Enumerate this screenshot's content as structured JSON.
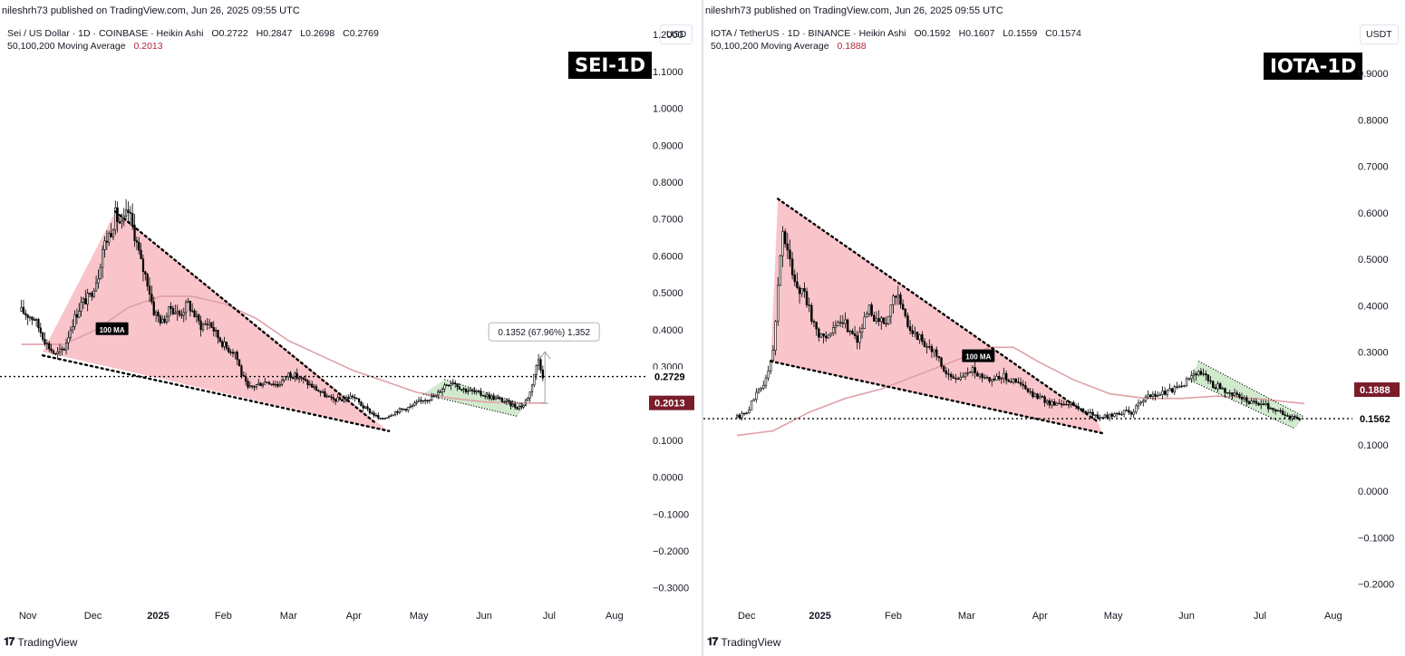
{
  "panels": {
    "sei": {
      "published": "nileshrh73 published on TradingView.com, Jun 26, 2025 09:55 UTC",
      "symbol_line": "Sei / US Dollar · 1D · COINBASE · Heikin Ashi",
      "ohlc": {
        "o": "O0.2722",
        "h": "H0.2847",
        "l": "L0.2698",
        "c": "C0.2769"
      },
      "ma_label": "50,100,200 Moving Average",
      "ma_value": "0.2013",
      "currency": "USD",
      "ticker": "SEI-1D",
      "ma_tag": "100 MA",
      "measure_label": "0.1352 (67.96%) 1,352",
      "brand": "TradingView"
    },
    "iota": {
      "published": "nileshrh73 published on TradingView.com, Jun 26, 2025 09:55 UTC",
      "symbol_line": "IOTA / TetherUS · 1D · BINANCE · Heikin Ashi",
      "ohlc": {
        "o": "O0.1592",
        "h": "H0.1607",
        "l": "L0.1559",
        "c": "C0.1574"
      },
      "ma_label": "50,100,200 Moving Average",
      "ma_value": "0.1888",
      "currency": "USDT",
      "ticker": "IOTA-1D",
      "ma_tag": "100 MA",
      "brand": "TradingView"
    }
  },
  "colors": {
    "candle": "#000000",
    "ma_line": "#e0a0a8",
    "ma_tag_bg": "#8b1a2b",
    "wedge_red": "#f7b2b8",
    "channel_green": "#c9e6c5",
    "axis_text": "#131722"
  },
  "chart_data": [
    {
      "type": "candlestick",
      "title": "SEI-1D",
      "x_ticks": [
        "Nov",
        "Dec",
        "2025",
        "Feb",
        "Mar",
        "Apr",
        "May",
        "Jun",
        "Jul",
        "Aug"
      ],
      "y_ticks": [
        "1.2000",
        "1.1000",
        "1.0000",
        "0.9000",
        "0.8000",
        "0.7000",
        "0.6000",
        "0.5000",
        "0.4000",
        "0.3000",
        "0.1000",
        "0.0000",
        "−0.1000",
        "−0.2000",
        "−0.3000"
      ],
      "ylim": [
        -0.34,
        1.22
      ],
      "xlim_days": [
        -10,
        292
      ],
      "last_price": {
        "label": "0.2729",
        "value": 0.2729
      },
      "ma_price": {
        "label": "0.2013",
        "value": 0.2013
      },
      "price_path": [
        [
          0,
          0.45
        ],
        [
          6,
          0.43
        ],
        [
          12,
          0.36
        ],
        [
          16,
          0.33
        ],
        [
          20,
          0.35
        ],
        [
          24,
          0.42
        ],
        [
          28,
          0.47
        ],
        [
          32,
          0.49
        ],
        [
          36,
          0.55
        ],
        [
          38,
          0.62
        ],
        [
          42,
          0.67
        ],
        [
          44,
          0.71
        ],
        [
          47,
          0.68
        ],
        [
          50,
          0.72
        ],
        [
          53,
          0.66
        ],
        [
          56,
          0.58
        ],
        [
          59,
          0.53
        ],
        [
          62,
          0.45
        ],
        [
          66,
          0.42
        ],
        [
          70,
          0.46
        ],
        [
          74,
          0.44
        ],
        [
          78,
          0.47
        ],
        [
          80,
          0.45
        ],
        [
          84,
          0.41
        ],
        [
          88,
          0.42
        ],
        [
          92,
          0.38
        ],
        [
          96,
          0.35
        ],
        [
          100,
          0.34
        ],
        [
          103,
          0.28
        ],
        [
          106,
          0.24
        ],
        [
          110,
          0.25
        ],
        [
          115,
          0.26
        ],
        [
          120,
          0.25
        ],
        [
          125,
          0.28
        ],
        [
          130,
          0.27
        ],
        [
          135,
          0.25
        ],
        [
          140,
          0.23
        ],
        [
          145,
          0.21
        ],
        [
          150,
          0.21
        ],
        [
          155,
          0.22
        ],
        [
          160,
          0.19
        ],
        [
          165,
          0.17
        ],
        [
          168,
          0.155
        ],
        [
          171,
          0.165
        ],
        [
          176,
          0.18
        ],
        [
          182,
          0.19
        ],
        [
          188,
          0.21
        ],
        [
          194,
          0.22
        ],
        [
          198,
          0.25
        ],
        [
          202,
          0.26
        ],
        [
          206,
          0.24
        ],
        [
          212,
          0.23
        ],
        [
          218,
          0.22
        ],
        [
          224,
          0.21
        ],
        [
          228,
          0.2
        ],
        [
          232,
          0.19
        ],
        [
          235,
          0.195
        ],
        [
          238,
          0.23
        ],
        [
          240,
          0.28
        ],
        [
          242,
          0.32
        ],
        [
          244,
          0.2769
        ]
      ],
      "ma_path": [
        [
          0,
          0.36
        ],
        [
          20,
          0.36
        ],
        [
          35,
          0.4
        ],
        [
          50,
          0.46
        ],
        [
          65,
          0.49
        ],
        [
          80,
          0.49
        ],
        [
          95,
          0.47
        ],
        [
          110,
          0.43
        ],
        [
          125,
          0.37
        ],
        [
          140,
          0.33
        ],
        [
          155,
          0.29
        ],
        [
          170,
          0.26
        ],
        [
          185,
          0.23
        ],
        [
          200,
          0.215
        ],
        [
          215,
          0.205
        ],
        [
          230,
          0.2
        ],
        [
          245,
          0.2013
        ]
      ],
      "wedge_red": [
        [
          10,
          0.34
        ],
        [
          44,
          0.72
        ],
        [
          164,
          0.16
        ],
        [
          172,
          0.125
        ]
      ],
      "wedge_upper": [
        [
          44,
          0.72
        ],
        [
          165,
          0.15
        ]
      ],
      "wedge_lower": [
        [
          10,
          0.33
        ],
        [
          172,
          0.125
        ]
      ],
      "channel_green": [
        [
          188,
          0.225
        ],
        [
          198,
          0.265
        ],
        [
          236,
          0.195
        ],
        [
          232,
          0.165
        ]
      ],
      "channel_upper": [
        [
          198,
          0.265
        ],
        [
          236,
          0.195
        ]
      ],
      "channel_lower": [
        [
          188,
          0.225
        ],
        [
          232,
          0.165
        ]
      ],
      "measure": {
        "x": 245,
        "from": 0.2,
        "to": 0.34
      },
      "ma_tag_at": [
        42,
        0.4
      ]
    },
    {
      "type": "candlestick",
      "title": "IOTA-1D",
      "x_ticks": [
        "Dec",
        "2025",
        "Feb",
        "Mar",
        "Apr",
        "May",
        "Jun",
        "Jul",
        "Aug"
      ],
      "y_ticks": [
        "0.9000",
        "0.8000",
        "0.7000",
        "0.6000",
        "0.5000",
        "0.4000",
        "0.3000",
        "0.1000",
        "0.0000",
        "−0.1000",
        "−0.2000"
      ],
      "ylim": [
        -0.24,
        1.0
      ],
      "xlim_days": [
        -14,
        256
      ],
      "last_price": {
        "label": "0.1562",
        "value": 0.1562
      },
      "ma_price": {
        "label": "0.1888",
        "value": 0.1888
      },
      "price_path": [
        [
          0,
          0.16
        ],
        [
          4,
          0.17
        ],
        [
          8,
          0.21
        ],
        [
          12,
          0.24
        ],
        [
          15,
          0.3
        ],
        [
          17,
          0.45
        ],
        [
          19,
          0.56
        ],
        [
          22,
          0.49
        ],
        [
          25,
          0.44
        ],
        [
          28,
          0.43
        ],
        [
          31,
          0.37
        ],
        [
          35,
          0.33
        ],
        [
          40,
          0.35
        ],
        [
          45,
          0.36
        ],
        [
          50,
          0.33
        ],
        [
          55,
          0.39
        ],
        [
          58,
          0.37
        ],
        [
          62,
          0.36
        ],
        [
          66,
          0.43
        ],
        [
          70,
          0.37
        ],
        [
          74,
          0.34
        ],
        [
          78,
          0.32
        ],
        [
          82,
          0.3
        ],
        [
          86,
          0.26
        ],
        [
          90,
          0.24
        ],
        [
          94,
          0.25
        ],
        [
          98,
          0.26
        ],
        [
          102,
          0.25
        ],
        [
          106,
          0.24
        ],
        [
          110,
          0.25
        ],
        [
          114,
          0.24
        ],
        [
          118,
          0.23
        ],
        [
          122,
          0.21
        ],
        [
          126,
          0.2
        ],
        [
          130,
          0.19
        ],
        [
          134,
          0.19
        ],
        [
          138,
          0.19
        ],
        [
          142,
          0.18
        ],
        [
          146,
          0.17
        ],
        [
          150,
          0.16
        ],
        [
          154,
          0.16
        ],
        [
          158,
          0.17
        ],
        [
          164,
          0.17
        ],
        [
          170,
          0.2
        ],
        [
          176,
          0.21
        ],
        [
          182,
          0.22
        ],
        [
          186,
          0.23
        ],
        [
          190,
          0.26
        ],
        [
          194,
          0.25
        ],
        [
          198,
          0.23
        ],
        [
          202,
          0.22
        ],
        [
          206,
          0.21
        ],
        [
          210,
          0.2
        ],
        [
          214,
          0.19
        ],
        [
          218,
          0.19
        ],
        [
          222,
          0.18
        ],
        [
          226,
          0.17
        ],
        [
          230,
          0.16
        ],
        [
          234,
          0.1574
        ]
      ],
      "ma_path": [
        [
          0,
          0.12
        ],
        [
          15,
          0.13
        ],
        [
          30,
          0.17
        ],
        [
          45,
          0.2
        ],
        [
          60,
          0.22
        ],
        [
          75,
          0.25
        ],
        [
          90,
          0.28
        ],
        [
          105,
          0.31
        ],
        [
          115,
          0.31
        ],
        [
          125,
          0.28
        ],
        [
          140,
          0.24
        ],
        [
          155,
          0.21
        ],
        [
          170,
          0.2
        ],
        [
          185,
          0.2
        ],
        [
          200,
          0.205
        ],
        [
          215,
          0.2
        ],
        [
          236,
          0.1888
        ]
      ],
      "wedge_red": [
        [
          14,
          0.28
        ],
        [
          17,
          0.63
        ],
        [
          150,
          0.15
        ],
        [
          152,
          0.125
        ]
      ],
      "wedge_upper": [
        [
          17,
          0.63
        ],
        [
          150,
          0.15
        ]
      ],
      "wedge_lower": [
        [
          14,
          0.28
        ],
        [
          152,
          0.125
        ]
      ],
      "channel_green": [
        [
          188,
          0.24
        ],
        [
          192,
          0.28
        ],
        [
          236,
          0.16
        ],
        [
          232,
          0.135
        ]
      ],
      "channel_upper": [
        [
          192,
          0.28
        ],
        [
          236,
          0.16
        ]
      ],
      "channel_lower": [
        [
          188,
          0.24
        ],
        [
          232,
          0.135
        ]
      ],
      "ma_tag_at": [
        100,
        0.29
      ]
    }
  ]
}
